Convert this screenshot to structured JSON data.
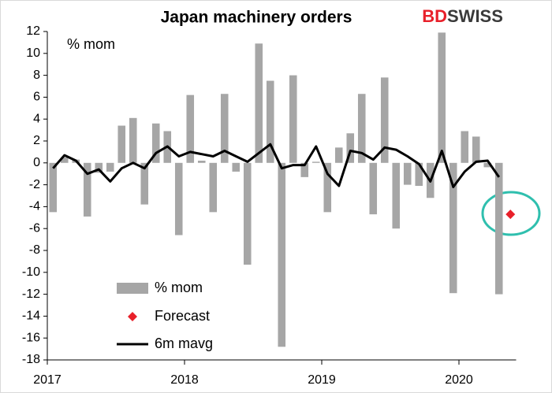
{
  "logo": [
    "BD",
    "SWISS"
  ],
  "chart_data": {
    "type": "bar",
    "title": "Japan machinery orders",
    "y_label": "% mom",
    "categories": [
      null,
      null,
      null,
      null,
      null,
      null,
      null,
      null,
      null,
      null,
      null,
      null,
      null,
      null,
      null,
      null,
      null,
      null,
      null,
      null,
      null,
      null,
      null,
      null,
      null,
      null,
      null,
      null,
      null,
      null,
      null,
      null,
      null,
      null,
      null,
      null,
      null,
      null,
      null,
      null,
      null
    ],
    "xlim": [
      2017,
      2020.4167
    ],
    "xticks": [
      2017,
      2018,
      2019,
      2020
    ],
    "ylim": [
      -18,
      12
    ],
    "yticks": [
      12,
      10,
      8,
      6,
      4,
      2,
      0,
      -2,
      -4,
      -6,
      -8,
      -10,
      -12,
      -14,
      -16,
      -18
    ],
    "grid": false,
    "legend": "lower left",
    "series": [
      {
        "name": "% mom",
        "type": "bar",
        "color": "#a6a6a6",
        "values": [
          -4.5,
          0.5,
          0.3,
          -4.9,
          -0.9,
          -0.8,
          3.4,
          4.1,
          -3.8,
          3.6,
          2.9,
          -6.6,
          6.2,
          0.2,
          -4.5,
          6.3,
          -0.8,
          -9.3,
          10.9,
          7.5,
          -16.8,
          8.0,
          -1.3,
          0.1,
          -4.5,
          1.4,
          2.7,
          6.3,
          -4.7,
          7.8,
          -6.0,
          -2.0,
          -2.1,
          -3.2,
          11.9,
          -11.9,
          2.9,
          2.4,
          -0.4,
          -12.0,
          null
        ]
      },
      {
        "name": "Forecast",
        "type": "marker",
        "color": "#e8202a",
        "values": [
          null,
          null,
          null,
          null,
          null,
          null,
          null,
          null,
          null,
          null,
          null,
          null,
          null,
          null,
          null,
          null,
          null,
          null,
          null,
          null,
          null,
          null,
          null,
          null,
          null,
          null,
          null,
          null,
          null,
          null,
          null,
          null,
          null,
          null,
          null,
          null,
          null,
          null,
          null,
          null,
          -4.7
        ]
      },
      {
        "name": "6m mavg",
        "type": "line",
        "color": "#000000",
        "values": [
          -0.5,
          0.7,
          0.2,
          -1.0,
          -0.6,
          -1.7,
          -0.5,
          0.0,
          -0.5,
          0.9,
          1.5,
          0.6,
          1.0,
          0.8,
          0.6,
          1.1,
          0.6,
          0.1,
          0.9,
          1.7,
          -0.5,
          -0.2,
          -0.2,
          1.5,
          -1.0,
          -2.1,
          1.1,
          0.9,
          0.3,
          1.4,
          1.2,
          0.6,
          -0.1,
          -1.7,
          1.1,
          -2.2,
          -0.8,
          0.1,
          0.2,
          -1.3,
          null
        ]
      }
    ]
  }
}
